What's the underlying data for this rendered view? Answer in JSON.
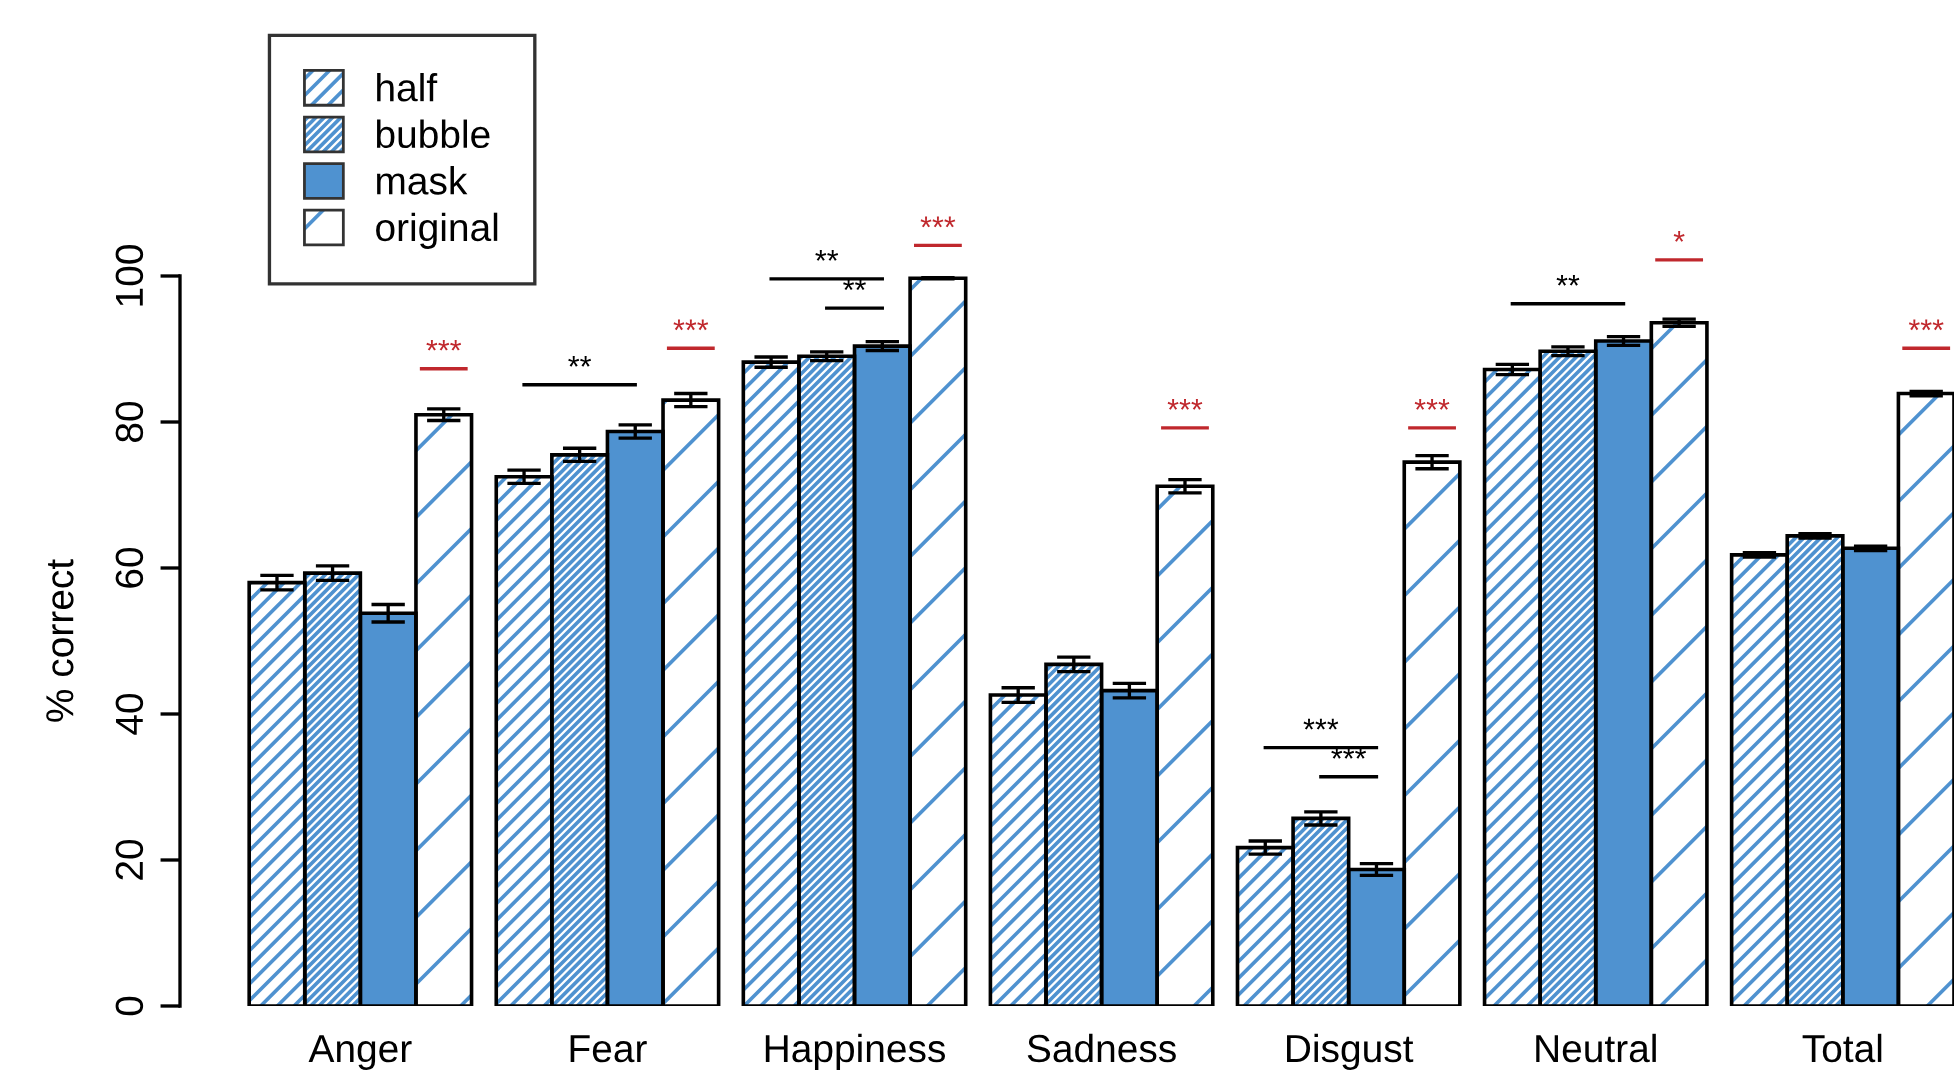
{
  "chart_data": {
    "type": "bar",
    "ylabel": "% correct",
    "categories": [
      "Anger",
      "Fear",
      "Happiness",
      "Sadness",
      "Disgust",
      "Neutral",
      "Total"
    ],
    "series": [
      {
        "name": "half",
        "color": "#4f92d0",
        "values": [
          58,
          72.5,
          88.2,
          42.6,
          21.7,
          87.2,
          61.8
        ],
        "errors": [
          1,
          0.9,
          0.7,
          1,
          0.9,
          0.7,
          0.3
        ]
      },
      {
        "name": "bubble",
        "color": "#4f92d0",
        "values": [
          59.3,
          75.5,
          89,
          46.8,
          25.7,
          89.7,
          64.4
        ],
        "errors": [
          1,
          0.9,
          0.6,
          1,
          0.9,
          0.6,
          0.3
        ]
      },
      {
        "name": "mask",
        "color": "#4f92d0",
        "values": [
          53.8,
          78.7,
          90.4,
          43.2,
          18.7,
          91.1,
          62.7
        ],
        "errors": [
          1.2,
          0.9,
          0.6,
          1,
          0.8,
          0.6,
          0.3
        ]
      },
      {
        "name": "original",
        "color": "#4f92d0",
        "values": [
          81,
          83,
          99.7,
          71.2,
          74.5,
          93.6,
          83.9
        ],
        "errors": [
          0.8,
          0.9,
          0.1,
          0.9,
          0.9,
          0.5,
          0.3
        ]
      }
    ],
    "ylim": [
      0,
      100
    ],
    "yticks": [
      0,
      20,
      40,
      60,
      80,
      100
    ],
    "grid": false,
    "legend": "top left",
    "annotations": [
      "***",
      "**",
      "***",
      "**",
      "**",
      "***",
      "***",
      "***",
      "***",
      "***",
      "**",
      "*",
      "***"
    ]
  }
}
